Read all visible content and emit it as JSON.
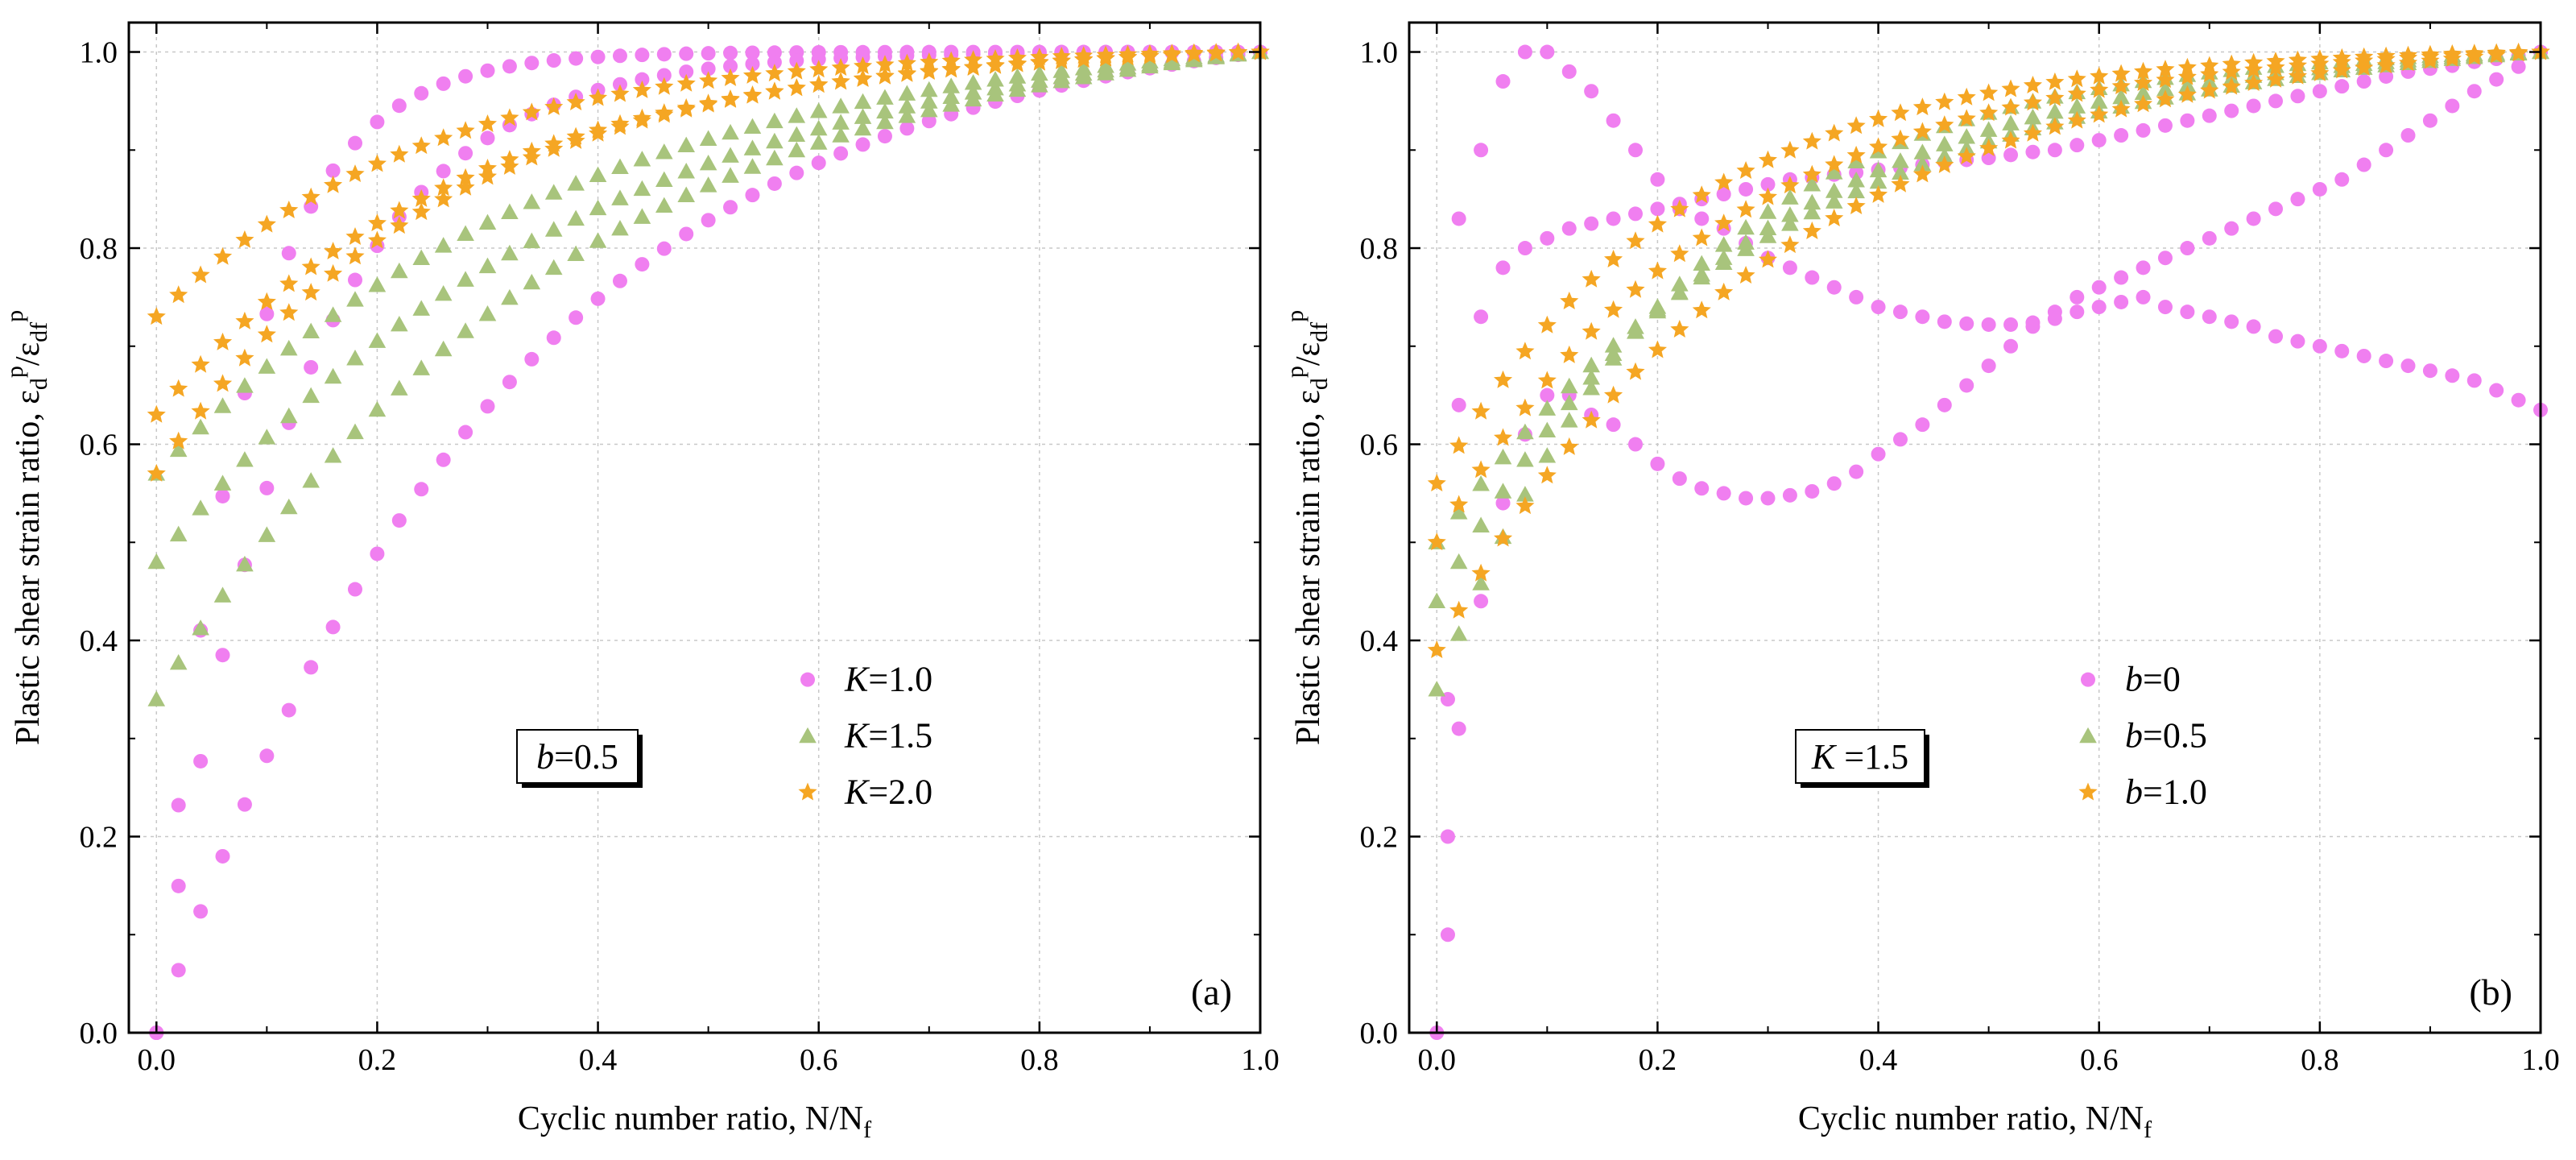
{
  "colors": {
    "K1": "#f07ff0",
    "K15": "#a8c47c",
    "K2": "#f5a623"
  },
  "chart_data": [
    {
      "id": "a",
      "type": "scatter",
      "panel_label": "(a)",
      "param_box": {
        "var": "b",
        "eq": "=0.5"
      },
      "xlabel_main": "Cyclic number ratio, N/N",
      "xlabel_sub": "f",
      "ylabel_main": "Plastic shear strain ratio, ",
      "xlim": [
        -0.025,
        1.0
      ],
      "ylim": [
        0.0,
        1.03
      ],
      "xticks": [
        0.0,
        0.2,
        0.4,
        0.6,
        0.8,
        1.0
      ],
      "yticks": [
        0.0,
        0.2,
        0.4,
        0.6,
        0.8,
        1.0
      ],
      "xtick_labels": [
        "0.0",
        "0.2",
        "0.4",
        "0.6",
        "0.8",
        "1.0"
      ],
      "ytick_labels": [
        "0.0",
        "0.2",
        "0.4",
        "0.6",
        "0.8",
        "1.0"
      ],
      "legend_position": "center-right",
      "grid": true,
      "series": [
        {
          "name": "K=1.0",
          "var": "K",
          "eq": "=1.0",
          "marker": "circle",
          "color": "#f07ff0",
          "curves": [
            {
              "y0": 0.0,
              "y1": 0.93,
              "k": 4.4
            },
            {
              "y0": 0.0,
              "y1": 0.89,
              "k": 2.7
            },
            {
              "y0": 0.0,
              "y1": 0.83,
              "k": 1.05
            }
          ]
        },
        {
          "name": "K=1.5",
          "var": "K",
          "eq": "=1.5",
          "marker": "triangle",
          "color": "#a8c47c",
          "curves": [
            {
              "y0": 0.57,
              "y1": 0.91,
              "k": 0.9
            },
            {
              "y0": 0.48,
              "y1": 0.88,
              "k": 0.85
            },
            {
              "y0": 0.34,
              "y1": 0.94,
              "k": 0.9
            }
          ]
        },
        {
          "name": "K=2.0",
          "var": "K",
          "eq": "=2.0",
          "marker": "star",
          "color": "#f5a623",
          "curves": [
            {
              "y0": 0.57,
              "y1": 0.82,
              "k": 1.3
            },
            {
              "y0": 0.63,
              "y1": 0.86,
              "k": 1.2
            },
            {
              "y0": 0.73,
              "y1": 0.91,
              "k": 1.4
            }
          ]
        }
      ]
    },
    {
      "id": "b",
      "type": "scatter",
      "panel_label": "(b)",
      "param_box": {
        "var": "K",
        "eq": " =1.5"
      },
      "xlabel_main": "Cyclic number ratio, N/N",
      "xlabel_sub": "f",
      "ylabel_main": "Plastic shear strain ratio, ",
      "xlim": [
        -0.025,
        1.0
      ],
      "ylim": [
        0.0,
        1.03
      ],
      "xticks": [
        0.0,
        0.2,
        0.4,
        0.6,
        0.8,
        1.0
      ],
      "yticks": [
        0.0,
        0.2,
        0.4,
        0.6,
        0.8,
        1.0
      ],
      "xtick_labels": [
        "0.0",
        "0.2",
        "0.4",
        "0.6",
        "0.8",
        "1.0"
      ],
      "ytick_labels": [
        "0.0",
        "0.2",
        "0.4",
        "0.6",
        "0.8",
        "1.0"
      ],
      "legend_position": "center-right",
      "grid": true,
      "series": [
        {
          "name": "b=0",
          "var": "b",
          "eq": "=0",
          "marker": "circle",
          "color": "#f07ff0",
          "x": [
            0.0,
            0.01,
            0.02,
            0.04,
            0.06,
            0.08,
            0.1,
            0.12,
            0.14,
            0.16,
            0.18,
            0.2,
            0.22,
            0.24,
            0.26,
            0.28,
            0.3,
            0.32,
            0.34,
            0.36,
            0.38,
            0.4,
            0.42,
            0.44,
            0.46,
            0.48,
            0.5,
            0.52,
            0.54,
            0.56,
            0.58,
            0.6,
            0.62,
            0.64,
            0.66,
            0.68,
            0.7,
            0.72,
            0.74,
            0.76,
            0.78,
            0.8,
            0.82,
            0.84,
            0.86,
            0.88,
            0.9,
            0.92,
            0.94,
            0.96,
            0.98,
            1.0
          ],
          "y": [
            0.0,
            0.1,
            0.31,
            0.44,
            0.54,
            0.61,
            0.65,
            0.65,
            0.63,
            0.62,
            0.6,
            0.58,
            0.565,
            0.555,
            0.55,
            0.545,
            0.545,
            0.548,
            0.552,
            0.56,
            0.572,
            0.59,
            0.605,
            0.62,
            0.64,
            0.66,
            0.68,
            0.7,
            0.72,
            0.735,
            0.75,
            0.76,
            0.77,
            0.78,
            0.79,
            0.8,
            0.81,
            0.82,
            0.83,
            0.84,
            0.85,
            0.86,
            0.87,
            0.885,
            0.9,
            0.915,
            0.93,
            0.945,
            0.96,
            0.972,
            0.985,
            1.0
          ],
          "x2": [
            0.01,
            0.02,
            0.04,
            0.06,
            0.08,
            0.1,
            0.12,
            0.14,
            0.16,
            0.18,
            0.2,
            0.22,
            0.24,
            0.26,
            0.28,
            0.3,
            0.32,
            0.34,
            0.36,
            0.38,
            0.4,
            0.42,
            0.44,
            0.46,
            0.48,
            0.5,
            0.52,
            0.54,
            0.56,
            0.58,
            0.6,
            0.62,
            0.64,
            0.66,
            0.68,
            0.7,
            0.72,
            0.74,
            0.76,
            0.78,
            0.8,
            0.82,
            0.84,
            0.86,
            0.88,
            0.9,
            0.92,
            0.94,
            0.96,
            0.98,
            1.0
          ],
          "y2": [
            0.2,
            0.64,
            0.9,
            0.97,
            1.0,
            1.0,
            0.98,
            0.96,
            0.93,
            0.9,
            0.87,
            0.84,
            0.83,
            0.82,
            0.805,
            0.79,
            0.78,
            0.77,
            0.76,
            0.75,
            0.74,
            0.735,
            0.73,
            0.725,
            0.723,
            0.722,
            0.722,
            0.724,
            0.728,
            0.735,
            0.74,
            0.745,
            0.75,
            0.74,
            0.735,
            0.73,
            0.725,
            0.72,
            0.71,
            0.705,
            0.7,
            0.695,
            0.69,
            0.685,
            0.68,
            0.675,
            0.67,
            0.665,
            0.655,
            0.645,
            0.635
          ],
          "x3": [
            0.01,
            0.02,
            0.04,
            0.06,
            0.08,
            0.1,
            0.12,
            0.14,
            0.16,
            0.18,
            0.2,
            0.22,
            0.24,
            0.26,
            0.28,
            0.3,
            0.32,
            0.34,
            0.36,
            0.38,
            0.4,
            0.42,
            0.44,
            0.46,
            0.48,
            0.5,
            0.52,
            0.54,
            0.56,
            0.58,
            0.6,
            0.62,
            0.64,
            0.66,
            0.68,
            0.7,
            0.72,
            0.74,
            0.76,
            0.78,
            0.8,
            0.82,
            0.84,
            0.86,
            0.88,
            0.9,
            0.92,
            0.94,
            0.96,
            0.98,
            1.0
          ],
          "y3": [
            0.34,
            0.83,
            0.73,
            0.78,
            0.8,
            0.81,
            0.82,
            0.825,
            0.83,
            0.835,
            0.84,
            0.845,
            0.85,
            0.855,
            0.86,
            0.865,
            0.87,
            0.872,
            0.875,
            0.877,
            0.88,
            0.882,
            0.885,
            0.888,
            0.89,
            0.892,
            0.895,
            0.898,
            0.9,
            0.905,
            0.91,
            0.915,
            0.92,
            0.925,
            0.93,
            0.935,
            0.94,
            0.945,
            0.95,
            0.955,
            0.96,
            0.965,
            0.97,
            0.975,
            0.98,
            0.983,
            0.986,
            0.99,
            0.993,
            0.996,
            1.0
          ]
        },
        {
          "name": "b=0.5",
          "var": "b",
          "eq": "=0.5",
          "marker": "triangle",
          "color": "#a8c47c",
          "curves": [
            {
              "y0": 0.35,
              "y1": 0.93,
              "k": 1.5
            },
            {
              "y0": 0.44,
              "y1": 0.88,
              "k": 1.2
            },
            {
              "y0": 0.5,
              "y1": 0.86,
              "k": 1.0
            }
          ]
        },
        {
          "name": "b=1.0",
          "var": "b",
          "eq": "=1.0",
          "marker": "star",
          "color": "#f5a623",
          "curves": [
            {
              "y0": 0.39,
              "y1": 0.86,
              "k": 1.1
            },
            {
              "y0": 0.5,
              "y1": 0.9,
              "k": 1.3
            },
            {
              "y0": 0.56,
              "y1": 0.92,
              "k": 1.5
            }
          ]
        }
      ]
    }
  ]
}
